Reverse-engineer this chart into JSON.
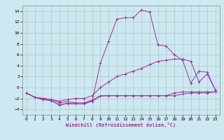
{
  "xlabel": "Windchill (Refroidissement éolien,°C)",
  "background_color": "#cde8f0",
  "grid_color": "#aacccc",
  "line_color": "#993399",
  "x": [
    0,
    1,
    2,
    3,
    4,
    5,
    6,
    7,
    8,
    9,
    10,
    11,
    12,
    13,
    14,
    15,
    16,
    17,
    18,
    19,
    20,
    21,
    22,
    23
  ],
  "series1": [
    -1.0,
    -1.8,
    -2.2,
    -2.4,
    -3.2,
    -2.9,
    -3.0,
    -3.0,
    -2.5,
    -1.6,
    -1.5,
    -1.5,
    -1.5,
    -1.5,
    -1.5,
    -1.5,
    -1.5,
    -1.5,
    -1.5,
    -1.2,
    -1.0,
    -1.0,
    -1.0,
    -0.8
  ],
  "series2": [
    -1.0,
    -1.8,
    -2.2,
    -2.4,
    -3.2,
    -2.9,
    -3.0,
    -3.0,
    -2.5,
    4.5,
    8.5,
    12.5,
    12.8,
    12.8,
    14.2,
    13.8,
    7.8,
    7.6,
    6.0,
    5.0,
    0.8,
    3.0,
    2.8,
    -0.5
  ],
  "series3": [
    -1.0,
    -1.8,
    -2.0,
    -2.2,
    -2.5,
    -2.2,
    -2.0,
    -2.0,
    -1.5,
    0.0,
    1.0,
    2.0,
    2.5,
    3.0,
    3.5,
    4.2,
    4.8,
    5.0,
    5.2,
    5.2,
    4.8,
    1.0,
    2.5,
    -0.5
  ],
  "series4": [
    -1.0,
    -1.8,
    -2.0,
    -2.2,
    -2.8,
    -2.6,
    -2.8,
    -2.8,
    -2.3,
    -1.5,
    -1.5,
    -1.5,
    -1.5,
    -1.5,
    -1.5,
    -1.5,
    -1.5,
    -1.5,
    -1.0,
    -0.8,
    -0.8,
    -0.8,
    -0.8,
    -0.8
  ],
  "ylim": [
    -5,
    15
  ],
  "xlim": [
    -0.5,
    23.5
  ],
  "yticks": [
    -4,
    -2,
    0,
    2,
    4,
    6,
    8,
    10,
    12,
    14
  ],
  "xticks": [
    0,
    1,
    2,
    3,
    4,
    5,
    6,
    7,
    8,
    9,
    10,
    11,
    12,
    13,
    14,
    15,
    16,
    17,
    18,
    19,
    20,
    21,
    22,
    23
  ]
}
